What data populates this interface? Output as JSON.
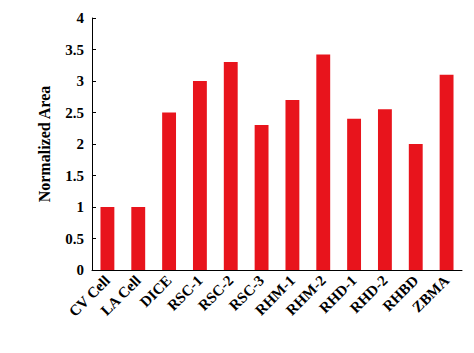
{
  "chart_data": {
    "type": "bar",
    "categories": [
      "CV Cell",
      "LA Cell",
      "DICE",
      "RSC-1",
      "RSC-2",
      "RSC-3",
      "RHM-1",
      "RHM-2",
      "RHD-1",
      "RHD-2",
      "RHBD",
      "ZBMA"
    ],
    "values": [
      1,
      1,
      2.5,
      3,
      3.3,
      2.3,
      2.7,
      3.42,
      2.4,
      2.55,
      2,
      3.1
    ],
    "color": "#e8141c",
    "ylabel": "Normalized Area",
    "ylim": [
      0,
      4
    ],
    "yticks": [
      0,
      0.5,
      1,
      1.5,
      2,
      2.5,
      3,
      3.5,
      4
    ],
    "grid": false
  }
}
